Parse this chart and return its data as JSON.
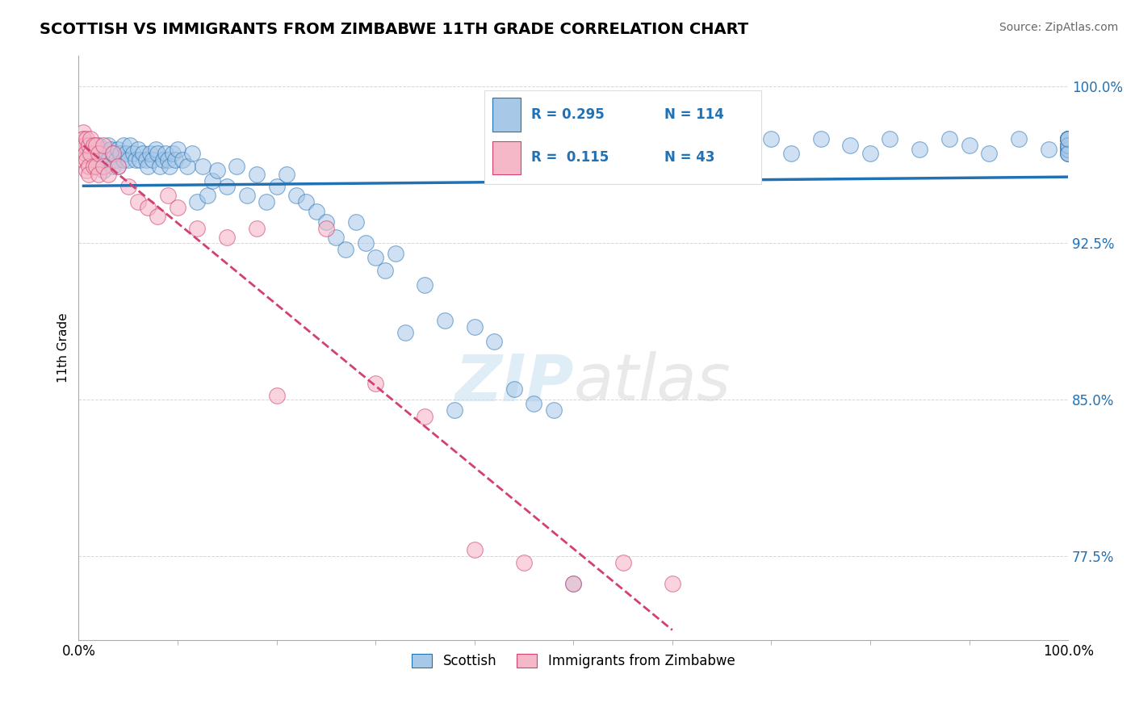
{
  "title": "SCOTTISH VS IMMIGRANTS FROM ZIMBABWE 11TH GRADE CORRELATION CHART",
  "source": "Source: ZipAtlas.com",
  "ylabel": "11th Grade",
  "xlim": [
    0.0,
    1.0
  ],
  "ylim": [
    0.735,
    1.015
  ],
  "yticks": [
    0.775,
    0.85,
    0.925,
    1.0
  ],
  "ytick_labels": [
    "77.5%",
    "85.0%",
    "92.5%",
    "100.0%"
  ],
  "xtick_labels": [
    "0.0%",
    "100.0%"
  ],
  "xticks": [
    0.0,
    1.0
  ],
  "blue_color": "#a8c8e8",
  "pink_color": "#f5b8c8",
  "blue_line_color": "#2171b5",
  "pink_line_color": "#d44070",
  "legend_blue_R": "0.295",
  "legend_blue_N": "114",
  "legend_pink_R": "0.115",
  "legend_pink_N": "43",
  "legend_label_blue": "Scottish",
  "legend_label_pink": "Immigrants from Zimbabwe",
  "blue_scatter_x": [
    0.005,
    0.008,
    0.01,
    0.012,
    0.015,
    0.018,
    0.02,
    0.022,
    0.025,
    0.025,
    0.028,
    0.03,
    0.03,
    0.032,
    0.035,
    0.035,
    0.038,
    0.04,
    0.04,
    0.042,
    0.045,
    0.045,
    0.048,
    0.05,
    0.052,
    0.055,
    0.058,
    0.06,
    0.062,
    0.065,
    0.068,
    0.07,
    0.072,
    0.075,
    0.078,
    0.08,
    0.082,
    0.085,
    0.088,
    0.09,
    0.092,
    0.095,
    0.098,
    0.1,
    0.105,
    0.11,
    0.115,
    0.12,
    0.125,
    0.13,
    0.135,
    0.14,
    0.15,
    0.16,
    0.17,
    0.18,
    0.19,
    0.2,
    0.21,
    0.22,
    0.23,
    0.24,
    0.25,
    0.26,
    0.27,
    0.28,
    0.29,
    0.3,
    0.31,
    0.32,
    0.33,
    0.35,
    0.37,
    0.38,
    0.4,
    0.42,
    0.44,
    0.46,
    0.48,
    0.5,
    0.52,
    0.54,
    0.56,
    0.58,
    0.6,
    0.62,
    0.65,
    0.68,
    0.7,
    0.72,
    0.75,
    0.78,
    0.8,
    0.82,
    0.85,
    0.88,
    0.9,
    0.92,
    0.95,
    0.98,
    1.0,
    1.0,
    1.0,
    1.0,
    1.0,
    1.0,
    1.0,
    1.0,
    1.0,
    1.0,
    1.0,
    1.0,
    1.0,
    1.0
  ],
  "blue_scatter_y": [
    0.975,
    0.972,
    0.968,
    0.97,
    0.965,
    0.968,
    0.972,
    0.965,
    0.97,
    0.96,
    0.968,
    0.972,
    0.965,
    0.97,
    0.968,
    0.962,
    0.965,
    0.97,
    0.962,
    0.968,
    0.972,
    0.965,
    0.968,
    0.965,
    0.972,
    0.968,
    0.965,
    0.97,
    0.965,
    0.968,
    0.965,
    0.962,
    0.968,
    0.965,
    0.97,
    0.968,
    0.962,
    0.965,
    0.968,
    0.965,
    0.962,
    0.968,
    0.965,
    0.97,
    0.965,
    0.962,
    0.968,
    0.945,
    0.962,
    0.948,
    0.955,
    0.96,
    0.952,
    0.962,
    0.948,
    0.958,
    0.945,
    0.952,
    0.958,
    0.948,
    0.945,
    0.94,
    0.935,
    0.928,
    0.922,
    0.935,
    0.925,
    0.918,
    0.912,
    0.92,
    0.882,
    0.905,
    0.888,
    0.845,
    0.885,
    0.878,
    0.855,
    0.848,
    0.845,
    0.762,
    0.975,
    0.97,
    0.968,
    0.965,
    0.97,
    0.975,
    0.968,
    0.97,
    0.975,
    0.968,
    0.975,
    0.972,
    0.968,
    0.975,
    0.97,
    0.975,
    0.972,
    0.968,
    0.975,
    0.97,
    0.975,
    0.972,
    0.968,
    0.975,
    0.97,
    0.975,
    0.972,
    0.968,
    0.975,
    0.97,
    0.975,
    0.972,
    0.968,
    0.975
  ],
  "pink_scatter_x": [
    0.005,
    0.005,
    0.005,
    0.005,
    0.006,
    0.007,
    0.008,
    0.008,
    0.008,
    0.01,
    0.01,
    0.01,
    0.012,
    0.012,
    0.015,
    0.015,
    0.018,
    0.018,
    0.02,
    0.02,
    0.025,
    0.025,
    0.03,
    0.035,
    0.04,
    0.05,
    0.06,
    0.07,
    0.08,
    0.09,
    0.1,
    0.12,
    0.15,
    0.18,
    0.2,
    0.25,
    0.3,
    0.35,
    0.4,
    0.45,
    0.5,
    0.55,
    0.6
  ],
  "pink_scatter_y": [
    0.978,
    0.975,
    0.97,
    0.965,
    0.972,
    0.968,
    0.975,
    0.965,
    0.96,
    0.972,
    0.962,
    0.958,
    0.975,
    0.968,
    0.972,
    0.962,
    0.972,
    0.962,
    0.968,
    0.958,
    0.972,
    0.962,
    0.958,
    0.968,
    0.962,
    0.952,
    0.945,
    0.942,
    0.938,
    0.948,
    0.942,
    0.932,
    0.928,
    0.932,
    0.852,
    0.932,
    0.858,
    0.842,
    0.778,
    0.772,
    0.762,
    0.772,
    0.762
  ]
}
